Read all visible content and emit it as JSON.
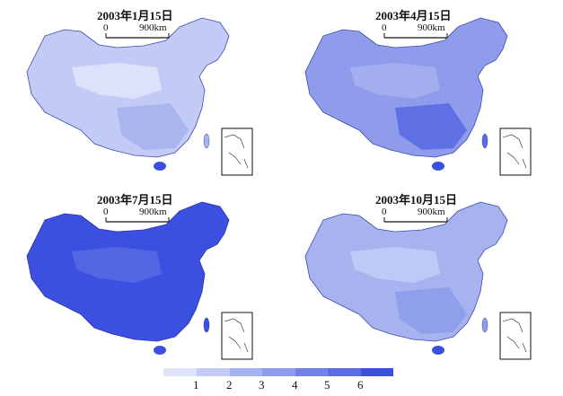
{
  "panels": [
    {
      "title": "2003年1月15日",
      "scale_start": "0",
      "scale_end": "900km",
      "fill_class": 2
    },
    {
      "title": "2003年4月15日",
      "scale_start": "0",
      "scale_end": "900km",
      "fill_class": 4
    },
    {
      "title": "2003年7月15日",
      "scale_start": "0",
      "scale_end": "900km",
      "fill_class": 6
    },
    {
      "title": "2003年10月15日",
      "scale_start": "0",
      "scale_end": "900km",
      "fill_class": 3
    }
  ],
  "legend": {
    "colors": [
      "#dfe4fb",
      "#c2cbf5",
      "#a7b3ef",
      "#8e9ceb",
      "#7382e8",
      "#5a6be4",
      "#3b4fe0"
    ],
    "labels": [
      "1",
      "2",
      "3",
      "4",
      "5",
      "6"
    ]
  }
}
